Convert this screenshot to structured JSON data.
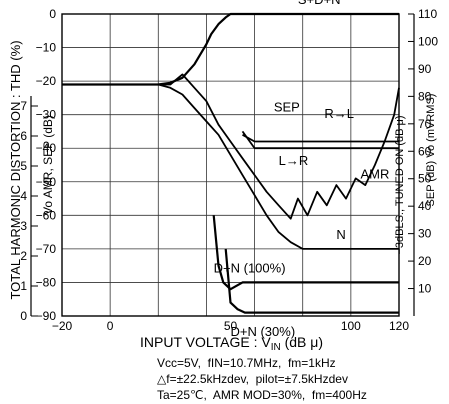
{
  "chart_data": {
    "type": "line",
    "xlabel": "INPUT VOLTAGE : V",
    "xlabel_sub": "IN",
    "xlabel_unit": "(dB μ)",
    "x_ticks": [
      "−20",
      "0",
      "50",
      "100",
      "120"
    ],
    "xlim": [
      -20,
      120
    ],
    "y_left_inner": {
      "label": "Vo AMR, SEP (dB)",
      "ticks": [
        "0",
        "−10",
        "−20",
        "−30",
        "−40",
        "−50",
        "−60",
        "−70",
        "−80",
        "−90"
      ],
      "ylim": [
        -90,
        0
      ]
    },
    "y_left_outer": {
      "label": "TOTAL HARMONIC DISTORTION : THD (%)",
      "ticks": [
        "0",
        "1",
        "2",
        "3",
        "4",
        "5",
        "6",
        "7"
      ],
      "ylim": [
        0,
        7
      ]
    },
    "y_right_inner": {
      "label": "SEP (dB) Vo (mVRMS)",
      "ticks": [
        "10",
        "20",
        "30",
        "40",
        "50",
        "60",
        "70",
        "80",
        "90",
        "100",
        "110"
      ],
      "ylim": [
        0,
        110
      ]
    },
    "y_right_outer": {
      "label": "−3dBLS., TUNED ON (dB μ)"
    },
    "grid": true,
    "series": [
      {
        "name": "S+D+N",
        "x": [
          -20,
          20,
          25,
          30,
          35,
          40,
          42,
          45,
          48,
          50,
          55,
          60,
          70,
          80,
          90,
          100,
          110,
          120
        ],
        "y": [
          -21,
          -21,
          -20.5,
          -19,
          -15,
          -9,
          -6,
          -3,
          -1,
          0,
          0,
          0,
          0,
          0,
          0,
          0,
          0,
          0
        ]
      },
      {
        "name": "N",
        "x": [
          -20,
          20,
          25,
          30,
          35,
          40,
          45,
          50,
          55,
          60,
          65,
          70,
          75,
          80,
          90,
          100,
          110,
          120
        ],
        "y": [
          -21,
          -21,
          -22,
          -24,
          -28,
          -32,
          -36,
          -42,
          -48,
          -54,
          -60,
          -65,
          -68,
          -70,
          -70,
          -70,
          -70,
          -70
        ]
      },
      {
        "name": "AMR",
        "x": [
          -20,
          25,
          30,
          35,
          40,
          45,
          50,
          55,
          60,
          65,
          70,
          75,
          78,
          82,
          86,
          90,
          94,
          98,
          102,
          106,
          110,
          114,
          118,
          120
        ],
        "y": [
          -21,
          -21,
          -18,
          -22,
          -26,
          -33,
          -38,
          -43,
          -48,
          -53,
          -57,
          -61,
          -55,
          -60,
          -53,
          -57,
          -51,
          -55,
          -49,
          -51,
          -45,
          -38,
          -30,
          -22
        ]
      },
      {
        "name": "SEP R→L",
        "x": [
          55,
          60,
          70,
          80,
          90,
          100,
          110,
          120
        ],
        "y": [
          -36,
          -38,
          -38,
          -38,
          -38,
          -38,
          -38,
          -38
        ]
      },
      {
        "name": "L→R",
        "x": [
          55,
          60,
          70,
          80,
          90,
          100,
          110,
          120
        ],
        "y": [
          -35,
          -40,
          -40,
          -40,
          -40,
          -40,
          -40,
          -40
        ]
      },
      {
        "name": "D+N (100%)",
        "x": [
          43,
          45,
          47,
          50,
          55,
          60,
          70,
          80,
          90,
          100,
          110,
          120
        ],
        "y": [
          -60,
          -75,
          -80,
          -82,
          -80,
          -80,
          -80,
          -80,
          -80,
          -80,
          -80,
          -80
        ]
      },
      {
        "name": "D+N (30%)",
        "x": [
          48,
          50,
          53,
          56,
          60,
          70,
          80,
          90,
          100,
          110,
          120
        ],
        "y": [
          -70,
          -86,
          -88,
          -89,
          -89,
          -89,
          -89,
          -89,
          -89,
          -89,
          -89
        ]
      }
    ],
    "labels": {
      "sdn": "S+D+N",
      "sep": "SEP",
      "rl": "R→L",
      "lr": "L→R",
      "amr": "AMR",
      "n": "N",
      "dn100": "D+N (100%)",
      "dn30": "D+N (30%)"
    }
  },
  "conditions": {
    "line1": "Vcc=5V,  fIN=10.7MHz,  fm=1kHz",
    "line2": "△f=±22.5kHzdev,  pilot=±7.5kHzdev",
    "line3": "Ta=25℃,  AMR MOD=30%,  fm=400Hz"
  }
}
